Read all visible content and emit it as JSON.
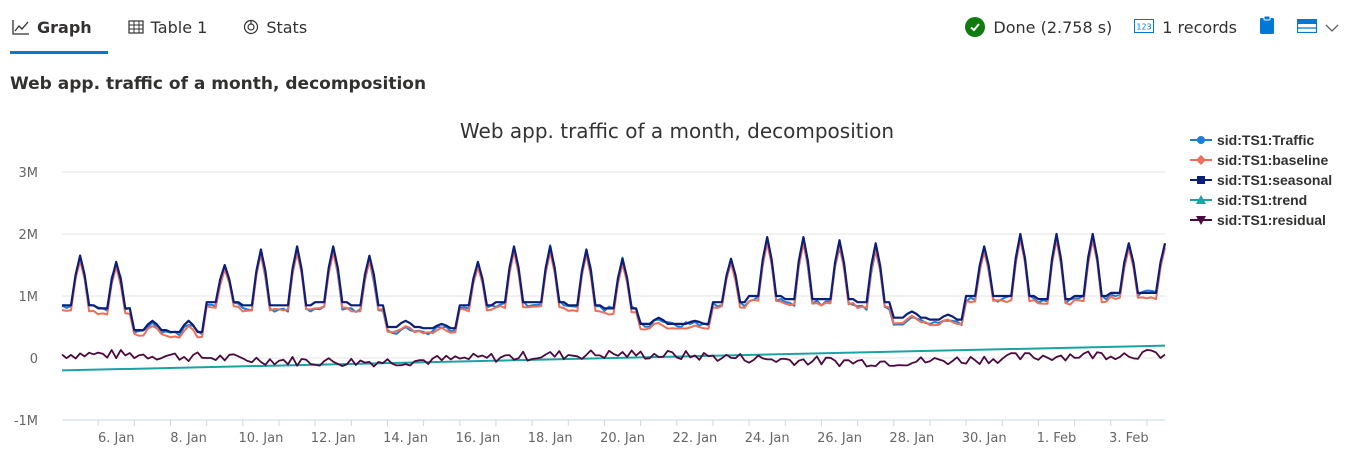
{
  "tabs": [
    {
      "label": "Graph",
      "icon": "line-chart-icon",
      "active": true
    },
    {
      "label": "Table 1",
      "icon": "table-icon",
      "active": false
    },
    {
      "label": "Stats",
      "icon": "stats-icon",
      "active": false
    }
  ],
  "status": {
    "done_label": "Done (2.758 s)",
    "records_label": "1 records"
  },
  "subtitle": "Web app. traffic of a month, decomposition",
  "colors": {
    "accent": "#0078d4",
    "done": "#107c10",
    "traffic": "#1c7ed6",
    "baseline": "#f06f5a",
    "seasonal": "#0b1f7a",
    "trend": "#1aa3a3",
    "residual": "#4b0a3f"
  },
  "chart_data": {
    "type": "line",
    "title": "Web app. traffic of a month, decomposition",
    "xlabel": "",
    "ylabel": "",
    "ylim": [
      -1000000,
      3000000
    ],
    "y_ticks": [
      -1000000,
      0,
      1000000,
      2000000,
      3000000
    ],
    "y_tick_labels": [
      "-1M",
      "0",
      "1M",
      "2M",
      "3M"
    ],
    "x_range": [
      "2017-01-05",
      "2017-02-04 12:00"
    ],
    "x_tick_labels": [
      "6. Jan",
      "8. Jan",
      "10. Jan",
      "12. Jan",
      "14. Jan",
      "16. Jan",
      "18. Jan",
      "20. Jan",
      "22. Jan",
      "24. Jan",
      "26. Jan",
      "28. Jan",
      "30. Jan",
      "1. Feb",
      "3. Feb"
    ],
    "x_tick_dates": [
      "2017-01-06",
      "2017-01-08",
      "2017-01-10",
      "2017-01-12",
      "2017-01-14",
      "2017-01-16",
      "2017-01-18",
      "2017-01-20",
      "2017-01-22",
      "2017-01-24",
      "2017-01-26",
      "2017-01-28",
      "2017-01-30",
      "2017-02-01",
      "2017-02-03"
    ],
    "grid": "horizontal",
    "legend_position": "right",
    "daily_peaks": [
      {
        "date": "2017-01-05",
        "peak": 1650000,
        "low": 850000
      },
      {
        "date": "2017-01-06",
        "peak": 1550000,
        "low": 800000
      },
      {
        "date": "2017-01-07",
        "peak": 600000,
        "low": 450000
      },
      {
        "date": "2017-01-08",
        "peak": 600000,
        "low": 420000
      },
      {
        "date": "2017-01-09",
        "peak": 1500000,
        "low": 900000
      },
      {
        "date": "2017-01-10",
        "peak": 1750000,
        "low": 850000
      },
      {
        "date": "2017-01-11",
        "peak": 1800000,
        "low": 850000
      },
      {
        "date": "2017-01-12",
        "peak": 1800000,
        "low": 900000
      },
      {
        "date": "2017-01-13",
        "peak": 1650000,
        "low": 850000
      },
      {
        "date": "2017-01-14",
        "peak": 600000,
        "low": 500000
      },
      {
        "date": "2017-01-15",
        "peak": 550000,
        "low": 480000
      },
      {
        "date": "2017-01-16",
        "peak": 1550000,
        "low": 850000
      },
      {
        "date": "2017-01-17",
        "peak": 1800000,
        "low": 900000
      },
      {
        "date": "2017-01-18",
        "peak": 1800000,
        "low": 900000
      },
      {
        "date": "2017-01-19",
        "peak": 1750000,
        "low": 850000
      },
      {
        "date": "2017-01-20",
        "peak": 1600000,
        "low": 800000
      },
      {
        "date": "2017-01-21",
        "peak": 650000,
        "low": 550000
      },
      {
        "date": "2017-01-22",
        "peak": 600000,
        "low": 550000
      },
      {
        "date": "2017-01-23",
        "peak": 1600000,
        "low": 900000
      },
      {
        "date": "2017-01-24",
        "peak": 1950000,
        "low": 1000000
      },
      {
        "date": "2017-01-25",
        "peak": 1950000,
        "low": 950000
      },
      {
        "date": "2017-01-26",
        "peak": 1900000,
        "low": 950000
      },
      {
        "date": "2017-01-27",
        "peak": 1850000,
        "low": 900000
      },
      {
        "date": "2017-01-28",
        "peak": 750000,
        "low": 650000
      },
      {
        "date": "2017-01-29",
        "peak": 700000,
        "low": 620000
      },
      {
        "date": "2017-01-30",
        "peak": 1800000,
        "low": 1000000
      },
      {
        "date": "2017-01-31",
        "peak": 2000000,
        "low": 1000000
      },
      {
        "date": "2017-02-01",
        "peak": 2000000,
        "low": 950000
      },
      {
        "date": "2017-02-02",
        "peak": 2000000,
        "low": 1000000
      },
      {
        "date": "2017-02-03",
        "peak": 1850000,
        "low": 1050000
      }
    ],
    "trend": [
      {
        "date": "2017-01-05",
        "value": -200000
      },
      {
        "date": "2017-02-04 12:00",
        "value": 200000
      }
    ],
    "series": [
      {
        "name": "sid:TS1:Traffic",
        "marker": "circle"
      },
      {
        "name": "sid:TS1:baseline",
        "marker": "diamond"
      },
      {
        "name": "sid:TS1:seasonal",
        "marker": "square"
      },
      {
        "name": "sid:TS1:trend",
        "marker": "triangle"
      },
      {
        "name": "sid:TS1:residual",
        "marker": "triangle-down"
      }
    ]
  }
}
